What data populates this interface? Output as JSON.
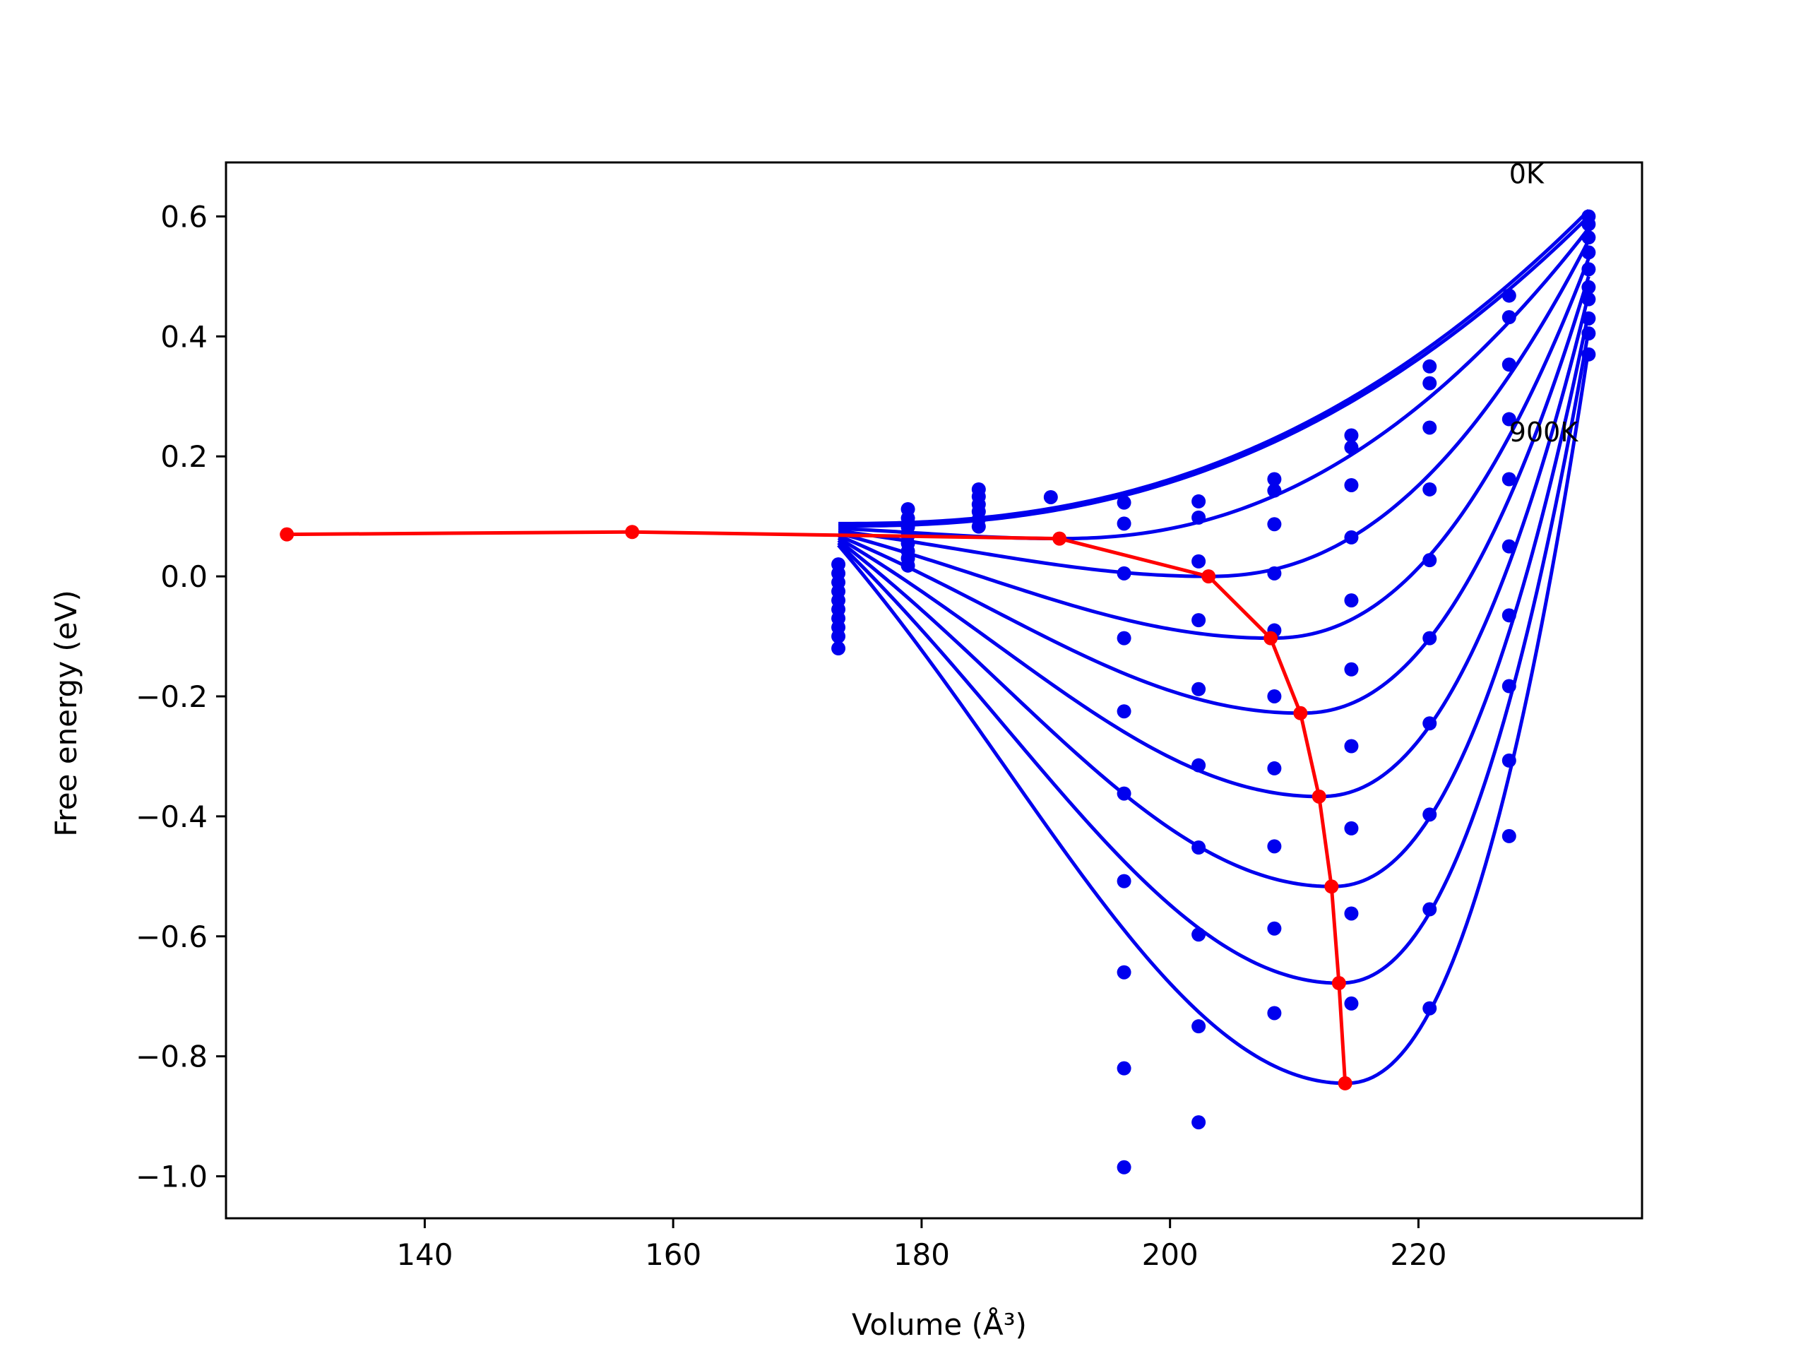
{
  "chart_data": {
    "type": "line",
    "title": "",
    "xlabel": "Volume (Å³)",
    "ylabel": "Free energy (eV)",
    "xlim": [
      124,
      238
    ],
    "ylim": [
      -1.07,
      0.69
    ],
    "xticks": [
      140,
      160,
      180,
      200,
      220
    ],
    "yticks": [
      0.6,
      0.4,
      0.2,
      0.0,
      -0.2,
      -0.4,
      -0.6,
      -0.8,
      -1.0
    ],
    "xtick_labels": [
      "140",
      "160",
      "180",
      "200",
      "220"
    ],
    "ytick_labels": [
      "0.6",
      "0.4",
      "0.2",
      "0.0",
      "−0.2",
      "−0.4",
      "−0.6",
      "−0.8",
      "−1.0"
    ],
    "grid": false,
    "legend": "none",
    "colors": {
      "fit": "#0000ee",
      "points": "#0000ee",
      "minima": "#ff0000",
      "frame": "#000000"
    },
    "annotations": [
      {
        "text": "0K",
        "x": 227.3,
        "y": 0.655
      },
      {
        "text": "900K",
        "x": 227.3,
        "y": 0.225
      }
    ],
    "fit_curves": [
      {
        "min_x": 128.9,
        "min_y": 0.07,
        "end_y": 0.61
      },
      {
        "min_x": 156.7,
        "min_y": 0.074,
        "end_y": 0.6
      },
      {
        "min_x": 191.1,
        "min_y": 0.063,
        "end_y": 0.58
      },
      {
        "min_x": 203.1,
        "min_y": 0.0,
        "end_y": 0.56
      },
      {
        "min_x": 208.1,
        "min_y": -0.103,
        "end_y": 0.53
      },
      {
        "min_x": 210.5,
        "min_y": -0.228,
        "end_y": 0.5
      },
      {
        "min_x": 212.0,
        "min_y": -0.367,
        "end_y": 0.47
      },
      {
        "min_x": 213.0,
        "min_y": -0.517,
        "end_y": 0.44
      },
      {
        "min_x": 213.6,
        "min_y": -0.678,
        "end_y": 0.41
      },
      {
        "min_x": 214.1,
        "min_y": -0.845,
        "end_y": 0.38
      }
    ],
    "fit_x_range": [
      173.3,
      233.7
    ],
    "points": [
      [
        173.3,
        0.02
      ],
      [
        173.3,
        0.005
      ],
      [
        173.3,
        -0.01
      ],
      [
        173.3,
        -0.025
      ],
      [
        173.3,
        -0.04
      ],
      [
        173.3,
        -0.055
      ],
      [
        173.3,
        -0.07
      ],
      [
        173.3,
        -0.085
      ],
      [
        173.3,
        -0.1
      ],
      [
        173.3,
        -0.12
      ],
      [
        178.9,
        0.112
      ],
      [
        178.9,
        0.097
      ],
      [
        178.9,
        0.082
      ],
      [
        178.9,
        0.068
      ],
      [
        178.9,
        0.055
      ],
      [
        178.9,
        0.042
      ],
      [
        178.9,
        0.03
      ],
      [
        178.9,
        0.018
      ],
      [
        184.6,
        0.145
      ],
      [
        184.6,
        0.133
      ],
      [
        184.6,
        0.12
      ],
      [
        184.6,
        0.108
      ],
      [
        184.6,
        0.095
      ],
      [
        184.6,
        0.083
      ],
      [
        190.4,
        0.132
      ],
      [
        196.3,
        0.123
      ],
      [
        196.3,
        0.088
      ],
      [
        196.3,
        0.005
      ],
      [
        196.3,
        -0.103
      ],
      [
        196.3,
        -0.225
      ],
      [
        196.3,
        -0.362
      ],
      [
        196.3,
        -0.508
      ],
      [
        196.3,
        -0.66
      ],
      [
        196.3,
        -0.82
      ],
      [
        196.3,
        -0.985
      ],
      [
        202.3,
        0.125
      ],
      [
        202.3,
        0.098
      ],
      [
        202.3,
        0.025
      ],
      [
        202.3,
        -0.073
      ],
      [
        202.3,
        -0.188
      ],
      [
        202.3,
        -0.315
      ],
      [
        202.3,
        -0.452
      ],
      [
        202.3,
        -0.597
      ],
      [
        202.3,
        -0.75
      ],
      [
        202.3,
        -0.91
      ],
      [
        208.4,
        0.162
      ],
      [
        208.4,
        0.143
      ],
      [
        208.4,
        0.087
      ],
      [
        208.4,
        0.005
      ],
      [
        208.4,
        -0.09
      ],
      [
        208.4,
        -0.2
      ],
      [
        208.4,
        -0.32
      ],
      [
        208.4,
        -0.45
      ],
      [
        208.4,
        -0.587
      ],
      [
        208.4,
        -0.728
      ],
      [
        214.6,
        0.235
      ],
      [
        214.6,
        0.215
      ],
      [
        214.6,
        0.152
      ],
      [
        214.6,
        0.065
      ],
      [
        214.6,
        -0.04
      ],
      [
        214.6,
        -0.155
      ],
      [
        214.6,
        -0.283
      ],
      [
        214.6,
        -0.42
      ],
      [
        214.6,
        -0.562
      ],
      [
        214.6,
        -0.712
      ],
      [
        220.9,
        0.35
      ],
      [
        220.9,
        0.322
      ],
      [
        220.9,
        0.248
      ],
      [
        220.9,
        0.145
      ],
      [
        220.9,
        0.027
      ],
      [
        220.9,
        -0.103
      ],
      [
        220.9,
        -0.245
      ],
      [
        220.9,
        -0.397
      ],
      [
        220.9,
        -0.555
      ],
      [
        220.9,
        -0.72
      ],
      [
        227.3,
        0.468
      ],
      [
        227.3,
        0.432
      ],
      [
        227.3,
        0.353
      ],
      [
        227.3,
        0.262
      ],
      [
        227.3,
        0.162
      ],
      [
        227.3,
        0.05
      ],
      [
        227.3,
        -0.065
      ],
      [
        227.3,
        -0.183
      ],
      [
        227.3,
        -0.307
      ],
      [
        227.3,
        -0.433
      ],
      [
        233.7,
        0.6
      ],
      [
        233.7,
        0.587
      ],
      [
        233.7,
        0.565
      ],
      [
        233.7,
        0.54
      ],
      [
        233.7,
        0.512
      ],
      [
        233.7,
        0.482
      ],
      [
        233.7,
        0.462
      ],
      [
        233.7,
        0.43
      ],
      [
        233.7,
        0.405
      ],
      [
        233.7,
        0.37
      ]
    ],
    "minima_series": {
      "x": [
        128.9,
        156.7,
        191.1,
        203.1,
        208.1,
        210.5,
        212.0,
        213.0,
        213.6,
        214.1
      ],
      "y": [
        0.07,
        0.074,
        0.063,
        0.0,
        -0.103,
        -0.228,
        -0.367,
        -0.517,
        -0.678,
        -0.845
      ]
    }
  }
}
